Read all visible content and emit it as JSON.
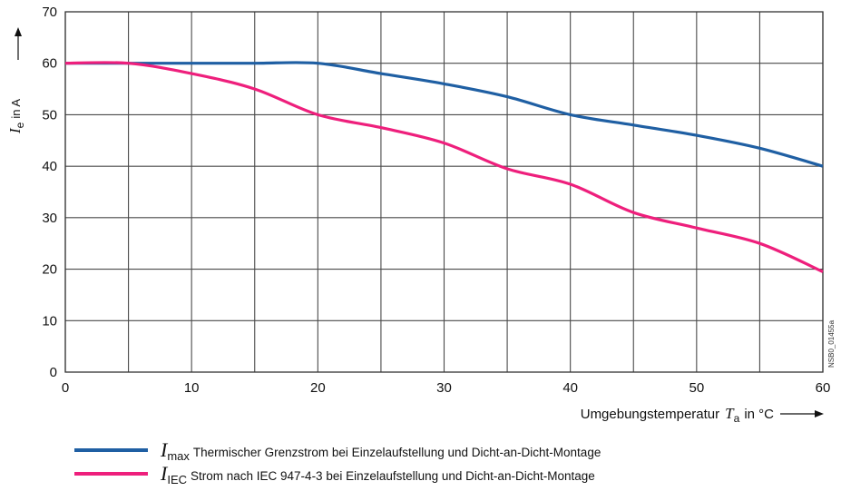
{
  "chart_data": {
    "type": "line",
    "xlabel": {
      "prefix": "Umgebungstemperatur",
      "symbol": "T",
      "sub": "a",
      "suffix": "in °C"
    },
    "ylabel": {
      "symbol": "I",
      "sub": "e",
      "suffix": "in A"
    },
    "xlim": [
      0,
      60
    ],
    "ylim": [
      0,
      70
    ],
    "xticks": [
      0,
      10,
      20,
      30,
      40,
      50,
      60
    ],
    "yticks": [
      0,
      10,
      20,
      30,
      40,
      50,
      60,
      70
    ],
    "grid": true,
    "grid_x_step": 5,
    "grid_y_step": 10,
    "legend_position": "bottom",
    "series": [
      {
        "key": "imax",
        "symbol": "I",
        "sub": "max",
        "name": "Thermischer Grenzstrom bei Einzelaufstellung und Dicht-an-Dicht-Montage",
        "color": "#1f5fa3",
        "x": [
          0,
          5,
          10,
          15,
          20,
          25,
          30,
          35,
          40,
          45,
          50,
          55,
          60
        ],
        "y": [
          60,
          60,
          60,
          60,
          60,
          58,
          56,
          53.5,
          50,
          48,
          46,
          43.5,
          40
        ]
      },
      {
        "key": "iiec",
        "symbol": "I",
        "sub": "IEC",
        "name": "Strom nach IEC 947-4-3 bei Einzelaufstellung und Dicht-an-Dicht-Montage",
        "color": "#ee1f7c",
        "x": [
          0,
          5,
          10,
          15,
          20,
          25,
          30,
          35,
          40,
          45,
          50,
          55,
          60
        ],
        "y": [
          60,
          60,
          58,
          55,
          50,
          47.5,
          44.5,
          39.5,
          36.5,
          31,
          28,
          25,
          19.5
        ]
      }
    ],
    "code_label": "NSB0_01455a"
  }
}
